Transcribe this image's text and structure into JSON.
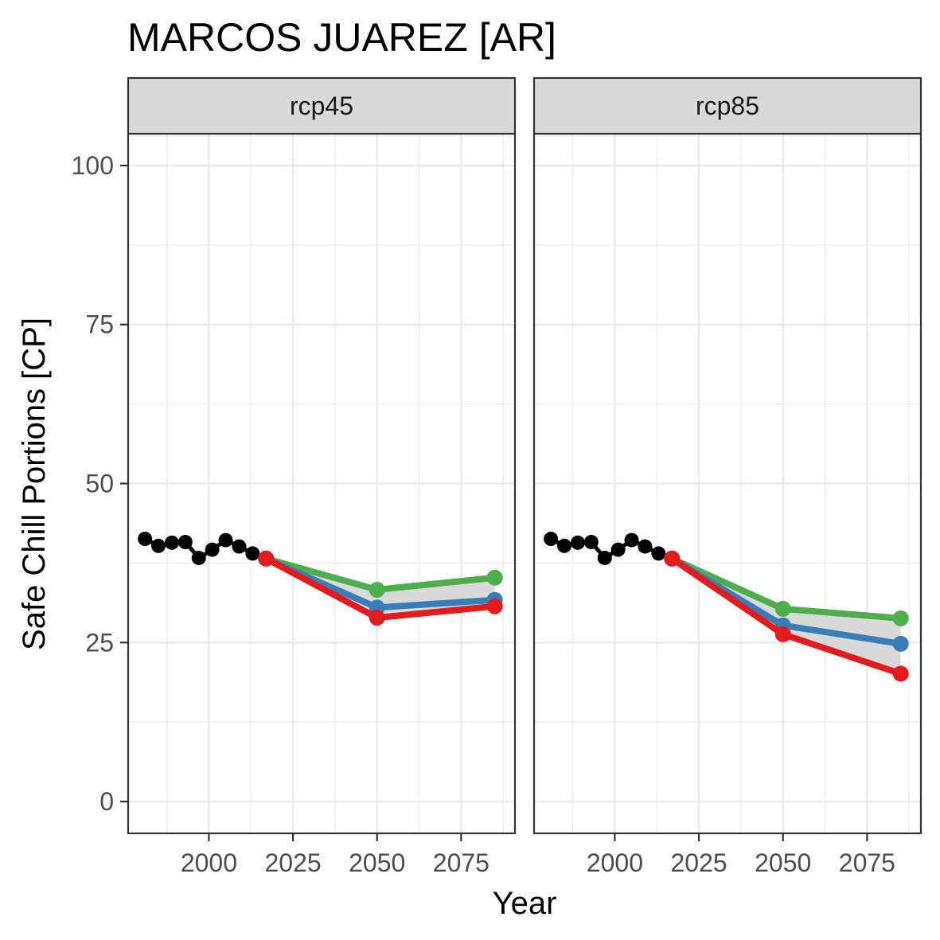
{
  "chart_data": {
    "type": "line",
    "title": "MARCOS JUAREZ [AR]",
    "xlabel": "Year",
    "ylabel": "Safe Chill Portions [CP]",
    "xlim": [
      1976,
      2091
    ],
    "ylim": [
      -5,
      105
    ],
    "x_ticks": [
      2000,
      2025,
      2050,
      2075
    ],
    "y_ticks": [
      0,
      25,
      50,
      75,
      100
    ],
    "grid": true,
    "legend": "none",
    "colors": {
      "historic": "#000000",
      "low": "#E41A1C",
      "mid": "#377EB8",
      "high": "#4DAF4A",
      "ribbon": "#d9d9d9",
      "strip_fill": "#d9d9d9",
      "grid": "#ebebeb",
      "panel_border": "#333333"
    },
    "facets": [
      {
        "label": "rcp45",
        "historic": {
          "x": [
            1981,
            1985,
            1989,
            1993,
            1997,
            2001,
            2005,
            2009,
            2013,
            2017
          ],
          "y": [
            41.3,
            40.2,
            40.7,
            40.8,
            38.3,
            39.6,
            41.1,
            40.1,
            39.0,
            38.2
          ]
        },
        "projections": [
          {
            "key": "high",
            "x": [
              2017,
              2050,
              2085
            ],
            "y": [
              38.2,
              33.3,
              35.2
            ]
          },
          {
            "key": "mid",
            "x": [
              2017,
              2050,
              2085
            ],
            "y": [
              38.2,
              30.5,
              31.7
            ]
          },
          {
            "key": "low",
            "x": [
              2017,
              2050,
              2085
            ],
            "y": [
              38.2,
              28.9,
              30.7
            ]
          }
        ]
      },
      {
        "label": "rcp85",
        "historic": {
          "x": [
            1981,
            1985,
            1989,
            1993,
            1997,
            2001,
            2005,
            2009,
            2013,
            2017
          ],
          "y": [
            41.3,
            40.2,
            40.7,
            40.8,
            38.3,
            39.6,
            41.1,
            40.1,
            39.0,
            38.2
          ]
        },
        "projections": [
          {
            "key": "high",
            "x": [
              2017,
              2050,
              2085
            ],
            "y": [
              38.2,
              30.3,
              28.8
            ]
          },
          {
            "key": "mid",
            "x": [
              2017,
              2050,
              2085
            ],
            "y": [
              38.2,
              27.7,
              24.8
            ]
          },
          {
            "key": "low",
            "x": [
              2017,
              2050,
              2085
            ],
            "y": [
              38.2,
              26.3,
              20.1
            ]
          }
        ]
      }
    ]
  }
}
